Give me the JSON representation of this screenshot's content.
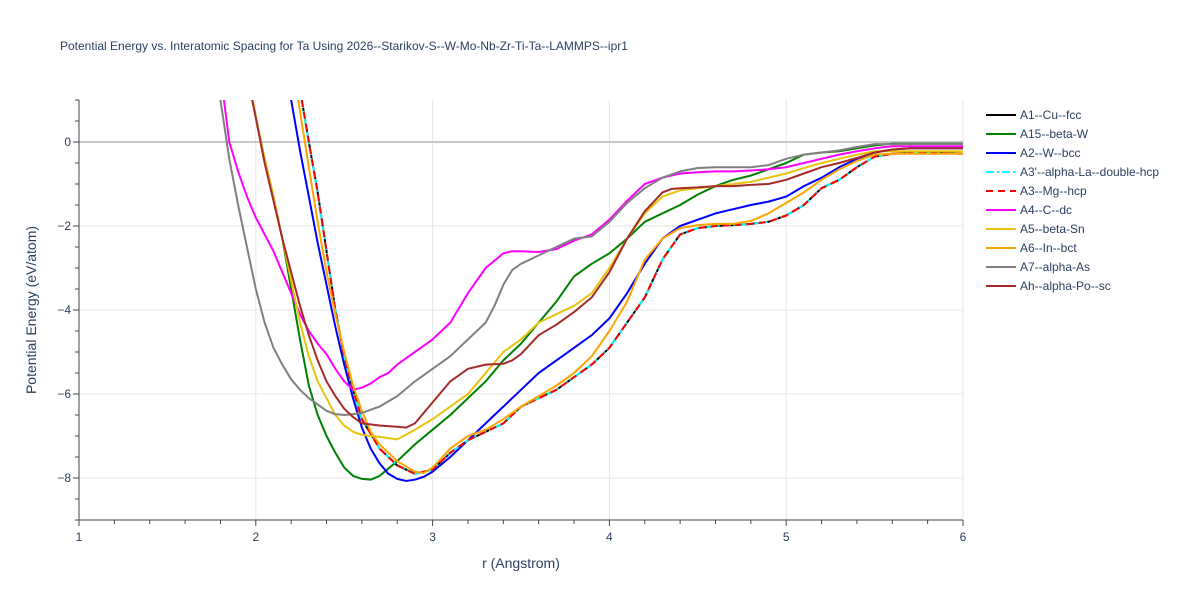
{
  "chart_data": {
    "type": "line",
    "title": "Potential Energy vs. Interatomic Spacing for Ta Using 2026--Starikov-S--W-Mo-Nb-Zr-Ti-Ta--LAMMPS--ipr1",
    "xlabel": "r (Angstrom)",
    "ylabel": "Potential Energy (eV/atom)",
    "xlim": [
      1,
      6
    ],
    "ylim": [
      -9,
      1
    ],
    "xticks": [
      1,
      2,
      3,
      4,
      5,
      6
    ],
    "xtick_labels": [
      "1",
      "2",
      "3",
      "4",
      "5",
      "6"
    ],
    "yticks": [
      -8,
      -6,
      -4,
      -2,
      0
    ],
    "ytick_labels": [
      "−8",
      "−6",
      "−4",
      "−2",
      "0"
    ],
    "grid": true,
    "legend_position": "right",
    "series": [
      {
        "name": "A1--Cu--fcc",
        "color": "#000000",
        "dash": "solid",
        "x": [
          2.26,
          2.3,
          2.35,
          2.4,
          2.45,
          2.5,
          2.55,
          2.6,
          2.7,
          2.8,
          2.9,
          3.0,
          3.1,
          3.2,
          3.3,
          3.4,
          3.5,
          3.6,
          3.7,
          3.8,
          3.9,
          4.0,
          4.1,
          4.2,
          4.3,
          4.4,
          4.5,
          4.6,
          4.7,
          4.8,
          4.9,
          5.0,
          5.1,
          5.2,
          5.3,
          5.4,
          5.5,
          5.6,
          5.7,
          5.8,
          5.9,
          6.0
        ],
        "y": [
          1.0,
          0.0,
          -1.2,
          -2.6,
          -4.0,
          -5.1,
          -5.9,
          -6.6,
          -7.3,
          -7.7,
          -7.9,
          -7.8,
          -7.4,
          -7.1,
          -6.9,
          -6.7,
          -6.3,
          -6.1,
          -5.9,
          -5.6,
          -5.3,
          -4.9,
          -4.3,
          -3.7,
          -2.8,
          -2.2,
          -2.05,
          -2.0,
          -1.98,
          -1.95,
          -1.9,
          -1.75,
          -1.5,
          -1.1,
          -0.9,
          -0.6,
          -0.35,
          -0.28,
          -0.26,
          -0.25,
          -0.26,
          -0.28
        ]
      },
      {
        "name": "A15--beta-W",
        "color": "#008000",
        "dash": "solid",
        "x": [
          1.98,
          2.05,
          2.1,
          2.15,
          2.2,
          2.25,
          2.3,
          2.35,
          2.4,
          2.45,
          2.5,
          2.55,
          2.6,
          2.65,
          2.7,
          2.8,
          2.9,
          3.0,
          3.1,
          3.2,
          3.3,
          3.4,
          3.5,
          3.6,
          3.7,
          3.8,
          3.9,
          4.0,
          4.1,
          4.2,
          4.3,
          4.4,
          4.5,
          4.6,
          4.7,
          4.8,
          4.9,
          5.0,
          5.1,
          5.2,
          5.3,
          5.4,
          5.5,
          5.6,
          5.7,
          6.0
        ],
        "y": [
          1.0,
          -0.4,
          -1.3,
          -2.3,
          -3.5,
          -4.7,
          -5.8,
          -6.5,
          -7.0,
          -7.4,
          -7.75,
          -7.95,
          -8.02,
          -8.04,
          -7.95,
          -7.6,
          -7.2,
          -6.85,
          -6.5,
          -6.1,
          -5.7,
          -5.2,
          -4.8,
          -4.3,
          -3.8,
          -3.2,
          -2.9,
          -2.65,
          -2.3,
          -1.9,
          -1.7,
          -1.5,
          -1.25,
          -1.05,
          -0.9,
          -0.8,
          -0.65,
          -0.5,
          -0.3,
          -0.25,
          -0.22,
          -0.15,
          -0.08,
          -0.04,
          -0.04,
          -0.04
        ]
      },
      {
        "name": "A2--W--bcc",
        "color": "#0000ff",
        "dash": "solid",
        "x": [
          2.2,
          2.25,
          2.3,
          2.35,
          2.4,
          2.45,
          2.5,
          2.55,
          2.6,
          2.65,
          2.7,
          2.75,
          2.8,
          2.85,
          2.9,
          2.95,
          3.0,
          3.1,
          3.2,
          3.3,
          3.4,
          3.5,
          3.6,
          3.7,
          3.8,
          3.9,
          4.0,
          4.1,
          4.2,
          4.3,
          4.4,
          4.5,
          4.6,
          4.7,
          4.8,
          4.9,
          5.0,
          5.1,
          5.2,
          5.3,
          5.4,
          5.5,
          5.6,
          5.7,
          6.0
        ],
        "y": [
          1.0,
          -0.2,
          -1.3,
          -2.4,
          -3.4,
          -4.4,
          -5.3,
          -6.1,
          -6.8,
          -7.3,
          -7.65,
          -7.9,
          -8.02,
          -8.07,
          -8.04,
          -7.97,
          -7.85,
          -7.5,
          -7.1,
          -6.7,
          -6.3,
          -5.9,
          -5.5,
          -5.2,
          -4.9,
          -4.6,
          -4.2,
          -3.6,
          -2.9,
          -2.3,
          -2.0,
          -1.85,
          -1.7,
          -1.6,
          -1.5,
          -1.42,
          -1.3,
          -1.05,
          -0.85,
          -0.6,
          -0.4,
          -0.25,
          -0.18,
          -0.15,
          -0.15
        ]
      },
      {
        "name": "A3'--alpha-La--double-hcp",
        "color": "#00ffff",
        "dash": "dashdot",
        "x": [
          2.26,
          2.3,
          2.35,
          2.4,
          2.45,
          2.5,
          2.55,
          2.6,
          2.7,
          2.8,
          2.9,
          3.0,
          3.1,
          3.2,
          3.3,
          3.4,
          3.5,
          3.6,
          3.7,
          3.8,
          3.9,
          4.0,
          4.1,
          4.2,
          4.3,
          4.4,
          4.5,
          4.6,
          4.7,
          4.8,
          4.9,
          5.0,
          5.1,
          5.2,
          5.3,
          5.4,
          5.5,
          5.6,
          5.7,
          5.8,
          5.9,
          6.0
        ],
        "y": [
          1.0,
          0.0,
          -1.2,
          -2.6,
          -4.0,
          -5.1,
          -5.9,
          -6.6,
          -7.3,
          -7.7,
          -7.9,
          -7.8,
          -7.4,
          -7.1,
          -6.9,
          -6.7,
          -6.3,
          -6.1,
          -5.9,
          -5.6,
          -5.3,
          -4.9,
          -4.3,
          -3.7,
          -2.8,
          -2.2,
          -2.05,
          -2.0,
          -1.98,
          -1.95,
          -1.9,
          -1.75,
          -1.5,
          -1.1,
          -0.9,
          -0.6,
          -0.35,
          -0.28,
          -0.26,
          -0.25,
          -0.26,
          -0.28
        ]
      },
      {
        "name": "A3--Mg--hcp",
        "color": "#ff0000",
        "dash": "dash",
        "x": [
          2.26,
          2.3,
          2.35,
          2.4,
          2.45,
          2.5,
          2.55,
          2.6,
          2.7,
          2.8,
          2.9,
          3.0,
          3.1,
          3.2,
          3.3,
          3.4,
          3.5,
          3.6,
          3.7,
          3.8,
          3.9,
          4.0,
          4.1,
          4.2,
          4.3,
          4.4,
          4.5,
          4.6,
          4.7,
          4.8,
          4.9,
          5.0,
          5.1,
          5.2,
          5.3,
          5.4,
          5.5,
          5.6,
          5.7,
          5.8,
          5.9,
          6.0
        ],
        "y": [
          1.0,
          0.0,
          -1.2,
          -2.6,
          -4.0,
          -5.1,
          -5.9,
          -6.6,
          -7.3,
          -7.7,
          -7.9,
          -7.8,
          -7.4,
          -7.1,
          -6.9,
          -6.7,
          -6.3,
          -6.1,
          -5.9,
          -5.6,
          -5.3,
          -4.9,
          -4.3,
          -3.7,
          -2.8,
          -2.2,
          -2.05,
          -2.0,
          -1.98,
          -1.95,
          -1.9,
          -1.75,
          -1.5,
          -1.1,
          -0.9,
          -0.6,
          -0.35,
          -0.28,
          -0.26,
          -0.25,
          -0.26,
          -0.28
        ]
      },
      {
        "name": "A4--C--dc",
        "color": "#ff00ff",
        "dash": "solid",
        "x": [
          1.82,
          1.85,
          1.9,
          1.95,
          2.0,
          2.05,
          2.1,
          2.15,
          2.2,
          2.25,
          2.3,
          2.35,
          2.4,
          2.45,
          2.5,
          2.55,
          2.6,
          2.65,
          2.7,
          2.75,
          2.8,
          2.9,
          3.0,
          3.1,
          3.2,
          3.3,
          3.4,
          3.45,
          3.5,
          3.6,
          3.7,
          3.8,
          3.9,
          4.0,
          4.1,
          4.2,
          4.3,
          4.4,
          4.5,
          4.6,
          4.7,
          4.8,
          4.9,
          5.0,
          5.1,
          5.2,
          5.3,
          5.4,
          5.5,
          5.6,
          6.0
        ],
        "y": [
          1.0,
          0.0,
          -0.7,
          -1.3,
          -1.8,
          -2.2,
          -2.6,
          -3.1,
          -3.6,
          -4.1,
          -4.5,
          -4.8,
          -5.05,
          -5.4,
          -5.7,
          -5.9,
          -5.85,
          -5.75,
          -5.6,
          -5.5,
          -5.3,
          -5.0,
          -4.7,
          -4.3,
          -3.6,
          -3.0,
          -2.65,
          -2.6,
          -2.6,
          -2.62,
          -2.55,
          -2.35,
          -2.2,
          -1.85,
          -1.4,
          -1.0,
          -0.85,
          -0.75,
          -0.72,
          -0.7,
          -0.7,
          -0.68,
          -0.65,
          -0.6,
          -0.5,
          -0.4,
          -0.3,
          -0.22,
          -0.15,
          -0.1,
          -0.1
        ]
      },
      {
        "name": "A5--beta-Sn",
        "color": "#e8c40c",
        "dash": "solid",
        "x": [
          1.98,
          2.05,
          2.1,
          2.15,
          2.2,
          2.25,
          2.3,
          2.35,
          2.4,
          2.45,
          2.5,
          2.55,
          2.6,
          2.65,
          2.7,
          2.75,
          2.8,
          2.9,
          3.0,
          3.1,
          3.2,
          3.3,
          3.4,
          3.5,
          3.6,
          3.7,
          3.8,
          3.9,
          4.0,
          4.1,
          4.2,
          4.3,
          4.4,
          4.5,
          4.6,
          4.7,
          4.8,
          4.9,
          5.0,
          5.1,
          5.2,
          5.3,
          5.4,
          5.5,
          6.0
        ],
        "y": [
          1.0,
          -0.4,
          -1.3,
          -2.3,
          -3.3,
          -4.3,
          -5.1,
          -5.7,
          -6.1,
          -6.5,
          -6.75,
          -6.9,
          -6.97,
          -7.0,
          -7.02,
          -7.05,
          -7.08,
          -6.85,
          -6.6,
          -6.3,
          -6.0,
          -5.5,
          -5.0,
          -4.7,
          -4.3,
          -4.1,
          -3.9,
          -3.6,
          -3.0,
          -2.3,
          -1.7,
          -1.3,
          -1.15,
          -1.1,
          -1.05,
          -1.0,
          -0.95,
          -0.85,
          -0.75,
          -0.62,
          -0.5,
          -0.4,
          -0.3,
          -0.22,
          -0.22
        ]
      },
      {
        "name": "A6--In--bct",
        "color": "#ffa500",
        "dash": "solid",
        "x": [
          2.24,
          2.3,
          2.35,
          2.4,
          2.45,
          2.5,
          2.55,
          2.6,
          2.65,
          2.7,
          2.8,
          2.9,
          2.95,
          3.0,
          3.1,
          3.2,
          3.3,
          3.4,
          3.5,
          3.6,
          3.7,
          3.8,
          3.9,
          4.0,
          4.1,
          4.2,
          4.3,
          4.4,
          4.5,
          4.6,
          4.7,
          4.8,
          4.9,
          5.0,
          5.1,
          5.2,
          5.3,
          5.4,
          5.5,
          5.6,
          5.7,
          6.0
        ],
        "y": [
          1.0,
          -0.6,
          -1.9,
          -3.1,
          -4.1,
          -5.0,
          -5.8,
          -6.4,
          -6.9,
          -7.2,
          -7.6,
          -7.85,
          -7.88,
          -7.75,
          -7.3,
          -7.0,
          -6.85,
          -6.6,
          -6.3,
          -6.05,
          -5.8,
          -5.5,
          -5.1,
          -4.5,
          -3.8,
          -2.8,
          -2.3,
          -2.05,
          -1.98,
          -1.95,
          -1.95,
          -1.88,
          -1.7,
          -1.45,
          -1.2,
          -0.9,
          -0.65,
          -0.45,
          -0.3,
          -0.28,
          -0.28,
          -0.28
        ]
      },
      {
        "name": "A7--alpha-As",
        "color": "#808080",
        "dash": "solid",
        "x": [
          1.8,
          1.85,
          1.9,
          1.95,
          2.0,
          2.05,
          2.1,
          2.15,
          2.2,
          2.25,
          2.3,
          2.35,
          2.4,
          2.45,
          2.5,
          2.55,
          2.6,
          2.7,
          2.8,
          2.9,
          3.0,
          3.1,
          3.2,
          3.3,
          3.35,
          3.4,
          3.45,
          3.5,
          3.6,
          3.7,
          3.8,
          3.9,
          4.0,
          4.1,
          4.2,
          4.3,
          4.4,
          4.5,
          4.6,
          4.7,
          4.8,
          4.9,
          5.0,
          5.1,
          5.2,
          5.3,
          5.4,
          5.5,
          6.0
        ],
        "y": [
          1.0,
          -0.4,
          -1.5,
          -2.5,
          -3.5,
          -4.3,
          -4.9,
          -5.3,
          -5.65,
          -5.9,
          -6.1,
          -6.25,
          -6.4,
          -6.48,
          -6.5,
          -6.48,
          -6.45,
          -6.3,
          -6.05,
          -5.7,
          -5.4,
          -5.1,
          -4.7,
          -4.3,
          -3.9,
          -3.4,
          -3.05,
          -2.9,
          -2.7,
          -2.5,
          -2.3,
          -2.25,
          -1.9,
          -1.45,
          -1.1,
          -0.85,
          -0.7,
          -0.62,
          -0.6,
          -0.6,
          -0.6,
          -0.55,
          -0.4,
          -0.3,
          -0.25,
          -0.2,
          -0.12,
          -0.05,
          -0.05
        ]
      },
      {
        "name": "Ah--alpha-Po--sc",
        "color": "#a52a2a",
        "dash": "solid",
        "x": [
          1.98,
          2.05,
          2.1,
          2.15,
          2.2,
          2.25,
          2.3,
          2.35,
          2.4,
          2.45,
          2.5,
          2.55,
          2.6,
          2.7,
          2.8,
          2.85,
          2.9,
          3.0,
          3.1,
          3.2,
          3.3,
          3.4,
          3.45,
          3.5,
          3.6,
          3.7,
          3.8,
          3.9,
          4.0,
          4.1,
          4.2,
          4.3,
          4.35,
          4.4,
          4.5,
          4.6,
          4.7,
          4.8,
          4.9,
          5.0,
          5.1,
          5.2,
          5.3,
          5.4,
          5.5,
          5.6,
          5.7,
          6.0
        ],
        "y": [
          1.0,
          -0.5,
          -1.4,
          -2.3,
          -3.1,
          -3.9,
          -4.6,
          -5.2,
          -5.7,
          -6.05,
          -6.35,
          -6.55,
          -6.7,
          -6.75,
          -6.78,
          -6.8,
          -6.7,
          -6.2,
          -5.7,
          -5.4,
          -5.3,
          -5.28,
          -5.2,
          -5.05,
          -4.6,
          -4.35,
          -4.05,
          -3.7,
          -3.1,
          -2.3,
          -1.65,
          -1.2,
          -1.12,
          -1.1,
          -1.08,
          -1.05,
          -1.05,
          -1.02,
          -1.0,
          -0.9,
          -0.75,
          -0.6,
          -0.5,
          -0.38,
          -0.25,
          -0.18,
          -0.15,
          -0.15
        ]
      }
    ]
  }
}
